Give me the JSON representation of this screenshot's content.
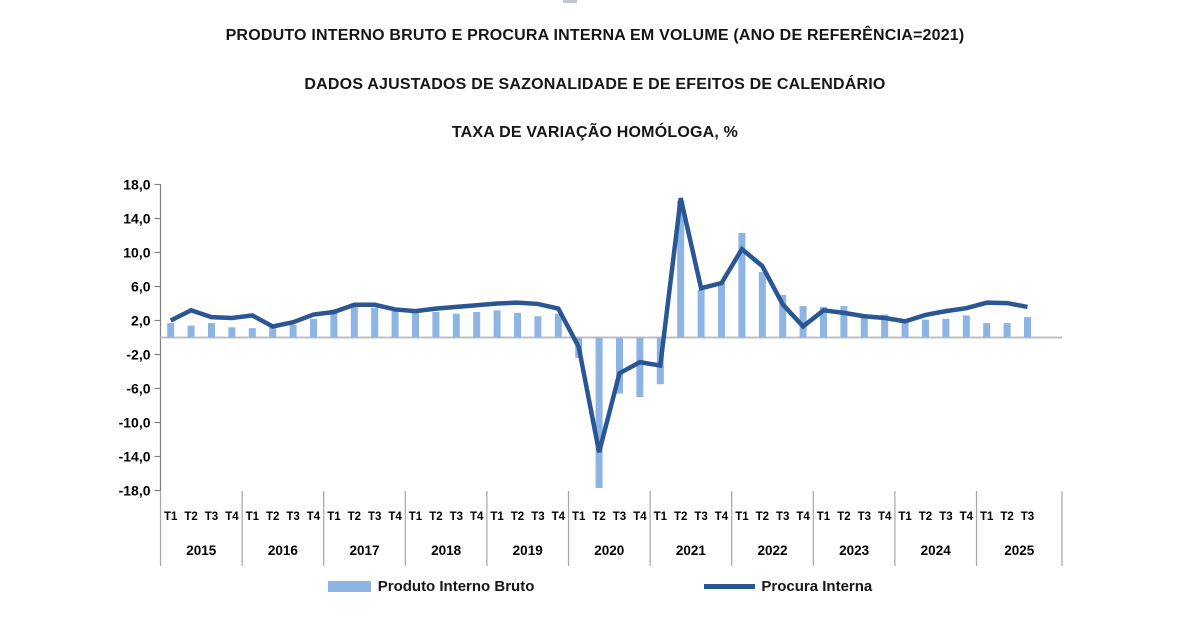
{
  "titles": {
    "line1": "PRODUTO INTERNO BRUTO E PROCURA INTERNA EM VOLUME (ANO DE REFERÊNCIA=2021)",
    "line2": "DADOS AJUSTADOS DE SAZONALIDADE E DE EFEITOS DE CALENDÁRIO",
    "line3": "TAXA DE VARIAÇÃO HOMÓLOGA, %"
  },
  "chart_data": {
    "type": "combo-bar-line",
    "title": "PRODUTO INTERNO BRUTO E PROCURA INTERNA EM VOLUME (ANO DE REFERÊNCIA=2021)",
    "subtitle": "DADOS AJUSTADOS DE SAZONALIDADE E DE EFEITOS DE CALENDÁRIO",
    "ylabel": "TAXA DE VARIAÇÃO HOMÓLOGA, %",
    "ylim": [
      -18,
      18
    ],
    "ytick_step": 4,
    "decimal_separator": ",",
    "grid": "zero-line-only",
    "legend_position": "bottom",
    "colors": {
      "bar": "#8EB4E3",
      "line": "#2B5694",
      "zero_line": "#C0C0C0",
      "axis": "#808080",
      "separator": "#A6A6A6"
    },
    "years": [
      {
        "label": "2015",
        "quarters": [
          "T1",
          "T2",
          "T3",
          "T4"
        ]
      },
      {
        "label": "2016",
        "quarters": [
          "T1",
          "T2",
          "T3",
          "T4"
        ]
      },
      {
        "label": "2017",
        "quarters": [
          "T1",
          "T2",
          "T3",
          "T4"
        ]
      },
      {
        "label": "2018",
        "quarters": [
          "T1",
          "T2",
          "T3",
          "T4"
        ]
      },
      {
        "label": "2019",
        "quarters": [
          "T1",
          "T2",
          "T3",
          "T4"
        ]
      },
      {
        "label": "2020",
        "quarters": [
          "T1",
          "T2",
          "T3",
          "T4"
        ]
      },
      {
        "label": "2021",
        "quarters": [
          "T1",
          "T2",
          "T3",
          "T4"
        ]
      },
      {
        "label": "2022",
        "quarters": [
          "T1",
          "T2",
          "T3",
          "T4"
        ]
      },
      {
        "label": "2023",
        "quarters": [
          "T1",
          "T2",
          "T3",
          "T4"
        ]
      },
      {
        "label": "2024",
        "quarters": [
          "T1",
          "T2",
          "T3",
          "T4"
        ]
      },
      {
        "label": "2025",
        "quarters": [
          "T1",
          "T2",
          "T3"
        ]
      }
    ],
    "series": [
      {
        "name": "Produto Interno Bruto",
        "type": "bar",
        "color_key": "bar",
        "values": [
          1.7,
          1.4,
          1.7,
          1.2,
          1.1,
          1.2,
          1.5,
          2.2,
          3.3,
          4.0,
          3.5,
          3.1,
          2.9,
          3.0,
          2.8,
          3.0,
          3.2,
          2.9,
          2.5,
          2.8,
          -2.4,
          -17.7,
          -6.6,
          -7.0,
          -5.5,
          16.1,
          5.6,
          6.5,
          12.3,
          7.7,
          5.0,
          3.7,
          3.6,
          3.7,
          2.5,
          2.7,
          1.9,
          2.1,
          2.2,
          2.6,
          1.7,
          1.7,
          2.4
        ]
      },
      {
        "name": "Procura Interna",
        "type": "line",
        "color_key": "line",
        "values": [
          2.0,
          3.2,
          2.4,
          2.3,
          2.6,
          1.3,
          1.8,
          2.7,
          3.0,
          3.85,
          3.85,
          3.3,
          3.1,
          3.4,
          3.6,
          3.8,
          4.0,
          4.1,
          3.95,
          3.4,
          -1.1,
          -13.5,
          -4.2,
          -2.9,
          -3.3,
          16.4,
          5.8,
          6.4,
          10.4,
          8.4,
          3.9,
          1.3,
          3.2,
          2.9,
          2.5,
          2.3,
          1.9,
          2.65,
          3.1,
          3.45,
          4.1,
          4.05,
          3.6
        ]
      }
    ]
  }
}
